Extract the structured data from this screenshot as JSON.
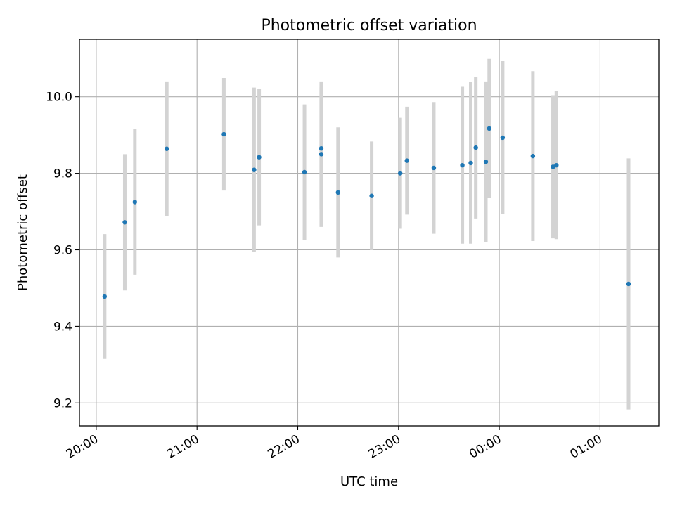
{
  "chart_data": {
    "type": "scatter",
    "title": "Photometric offset variation",
    "xlabel": "UTC time",
    "ylabel": "Photometric offset",
    "x_ticks": [
      "20:00",
      "21:00",
      "22:00",
      "23:00",
      "00:00",
      "01:00"
    ],
    "y_ticks": [
      "9.2",
      "9.4",
      "9.6",
      "9.8",
      "10.0"
    ],
    "xlim": [
      "19:50",
      "01:35"
    ],
    "ylim": [
      9.14,
      10.15
    ],
    "grid": true,
    "marker_color": "#1f77b4",
    "errorbar_color": "#d3d3d3",
    "points": [
      {
        "x": "20:05",
        "y": 9.478,
        "err": 0.163
      },
      {
        "x": "20:17",
        "y": 9.672,
        "err": 0.178
      },
      {
        "x": "20:23",
        "y": 9.725,
        "err": 0.19
      },
      {
        "x": "20:42",
        "y": 9.864,
        "err": 0.176
      },
      {
        "x": "21:16",
        "y": 9.902,
        "err": 0.147
      },
      {
        "x": "21:34",
        "y": 9.809,
        "err": 0.215
      },
      {
        "x": "21:37",
        "y": 9.842,
        "err": 0.178
      },
      {
        "x": "22:04",
        "y": 9.803,
        "err": 0.177
      },
      {
        "x": "22:14",
        "y": 9.865,
        "err": 0.16
      },
      {
        "x": "22:14",
        "y": 9.85,
        "err": 0.19
      },
      {
        "x": "22:24",
        "y": 9.75,
        "err": 0.17
      },
      {
        "x": "22:44",
        "y": 9.741,
        "err": 0.142
      },
      {
        "x": "23:01",
        "y": 9.8,
        "err": 0.145
      },
      {
        "x": "23:05",
        "y": 9.833,
        "err": 0.141
      },
      {
        "x": "23:21",
        "y": 9.814,
        "err": 0.172
      },
      {
        "x": "23:38",
        "y": 9.821,
        "err": 0.205
      },
      {
        "x": "23:43",
        "y": 9.827,
        "err": 0.211
      },
      {
        "x": "23:46",
        "y": 9.867,
        "err": 0.185
      },
      {
        "x": "23:52",
        "y": 9.83,
        "err": 0.21
      },
      {
        "x": "23:54",
        "y": 9.917,
        "err": 0.182
      },
      {
        "x": "00:02",
        "y": 9.893,
        "err": 0.2
      },
      {
        "x": "00:20",
        "y": 9.845,
        "err": 0.222
      },
      {
        "x": "00:32",
        "y": 9.817,
        "err": 0.187
      },
      {
        "x": "00:34",
        "y": 9.821,
        "err": 0.193
      },
      {
        "x": "01:17",
        "y": 9.511,
        "err": 0.328
      }
    ]
  }
}
